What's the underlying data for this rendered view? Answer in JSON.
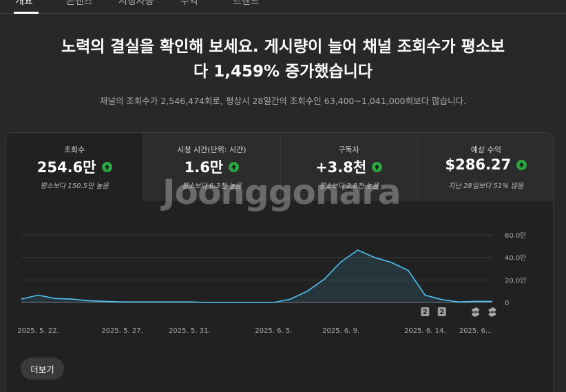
{
  "tabs": [
    {
      "label": "개요",
      "active": true
    },
    {
      "label": "콘텐츠",
      "active": false
    },
    {
      "label": "시청자층",
      "active": false
    },
    {
      "label": "수익",
      "active": false
    },
    {
      "label": "트렌드",
      "active": false
    }
  ],
  "headline": {
    "line1": "노력의 결실을 확인해 보세요. 게시량이 늘어 채널 조회수가 평소보",
    "line2": "다 1,459% 증가했습니다"
  },
  "subline": "채널의 조회수가 2,546,474회로, 평상시 28일간의 조회수인 63,400~1,041,000회보다 많습니다.",
  "metrics": [
    {
      "label": "조회수",
      "value": "254.6만",
      "note": "평소보다 150.5만 높음",
      "trend": "up"
    },
    {
      "label": "시청 시간(단위: 시간)",
      "value": "1.6만",
      "note": "평소보다 6.3천 높음",
      "trend": "up"
    },
    {
      "label": "구독자",
      "value": "+3.8천",
      "note": "평소보다 2.8천 높음",
      "trend": "up"
    },
    {
      "label": "예상 수익",
      "value": "$286.27",
      "note": "지난 28일보다 51% 많음",
      "trend": "up"
    }
  ],
  "watermark": "Joonggonara",
  "chart_data": {
    "type": "area",
    "x": [
      "2025. 5. 21.",
      "2025. 5. 22.",
      "2025. 5. 23.",
      "2025. 5. 24.",
      "2025. 5. 25.",
      "2025. 5. 26.",
      "2025. 5. 27.",
      "2025. 5. 28.",
      "2025. 5. 29.",
      "2025. 5. 30.",
      "2025. 5. 31.",
      "2025. 6. 1.",
      "2025. 6. 2.",
      "2025. 6. 3.",
      "2025. 6. 4.",
      "2025. 6. 5.",
      "2025. 6. 6.",
      "2025. 6. 7.",
      "2025. 6. 8.",
      "2025. 6. 9.",
      "2025. 6. 10.",
      "2025. 6. 11.",
      "2025. 6. 12.",
      "2025. 6. 13.",
      "2025. 6. 14.",
      "2025. 6. 15.",
      "2025. 6. 16.",
      "2025. 6. 17.",
      "2025. 6. 18."
    ],
    "series": [
      {
        "values": [
          3,
          6.5,
          3.5,
          3,
          1.5,
          1,
          0.5,
          0.5,
          0.5,
          0.5,
          0.5,
          0,
          0,
          0,
          0,
          0,
          3,
          10,
          20.5,
          36,
          46.5,
          40,
          35.5,
          28.5,
          6.5,
          2.5,
          0.5,
          1,
          1
        ],
        "color": "#4fc3f7"
      }
    ],
    "y_ticks": [
      "60.0만",
      "40.0만",
      "20.0만",
      "0"
    ],
    "x_ticks": [
      "2025. 5. 22.",
      "2025. 5. 27.",
      "2025. 5. 31.",
      "2025. 6. 5.",
      "2025. 6. 9.",
      "2025. 6. 14.",
      "2025. 6..."
    ],
    "ylim": [
      0,
      60
    ],
    "markers": [
      {
        "label": "2",
        "x": "2025. 6. 14."
      },
      {
        "label": "2",
        "x": "2025. 6. 15."
      }
    ],
    "short_icons": [
      "2025. 6. 17.",
      "2025. 6. 18."
    ]
  },
  "more_button": "더보기",
  "colors": {
    "background": "#282828",
    "card": "#212121",
    "accent_line": "#4fc3f7",
    "up_green": "#2ba640"
  }
}
